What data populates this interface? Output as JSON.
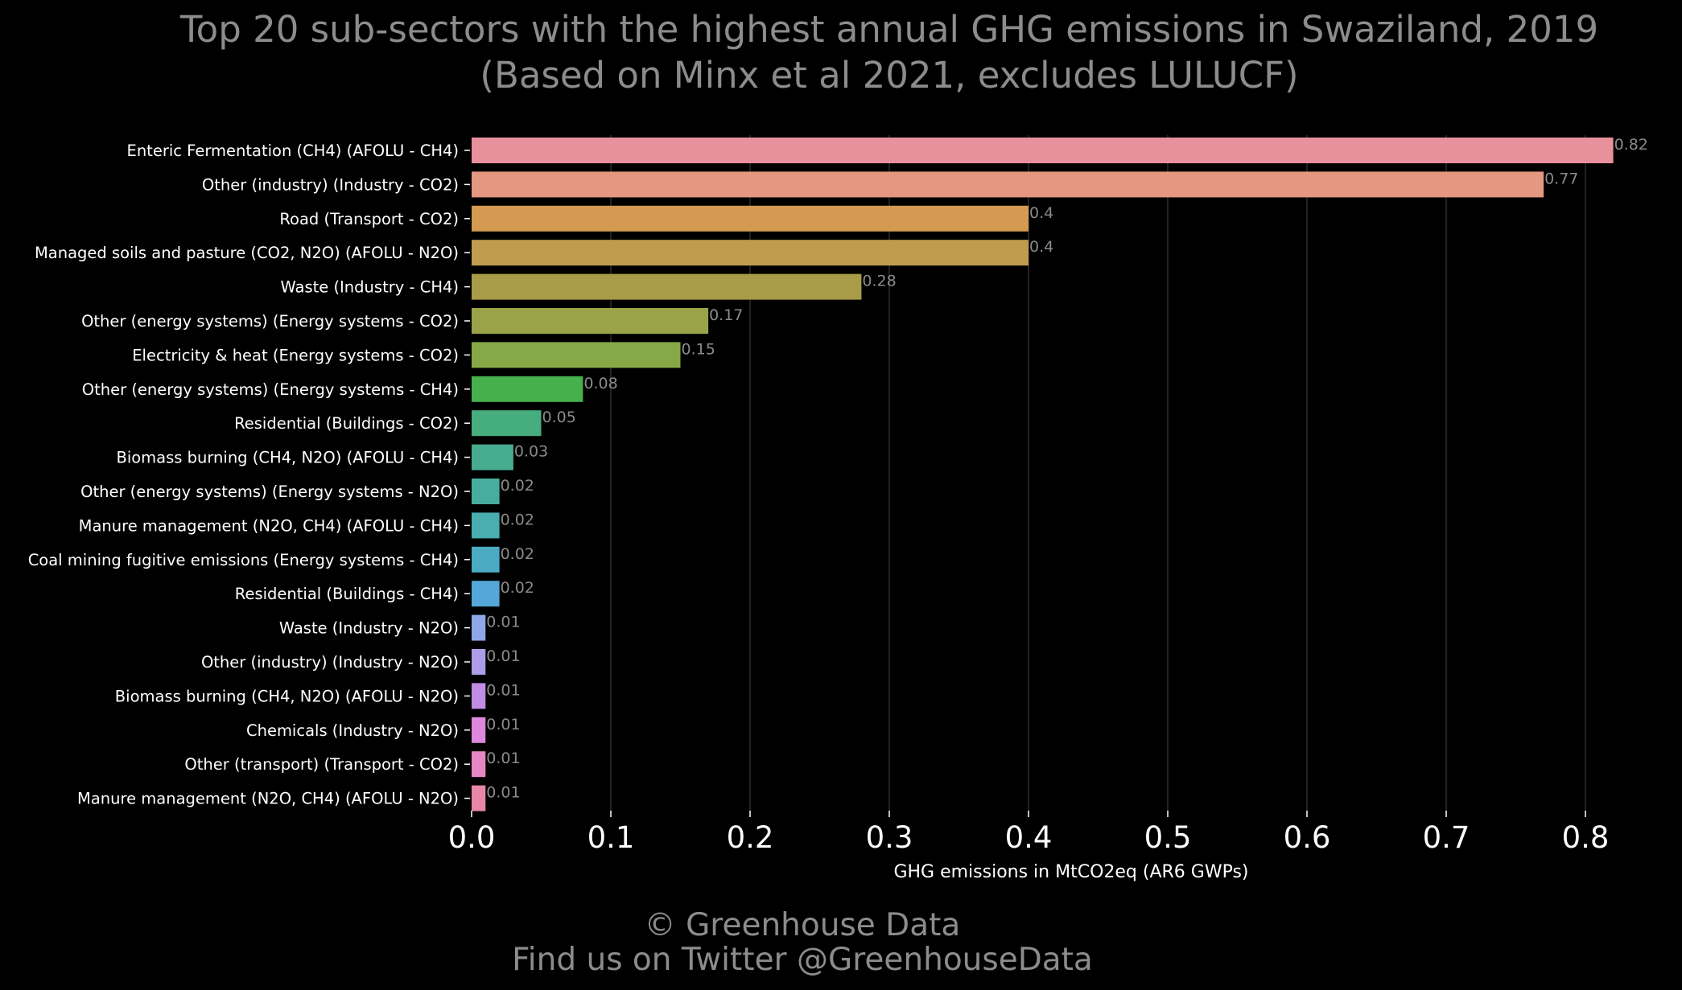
{
  "chart_data": {
    "type": "bar",
    "orientation": "horizontal",
    "title": "Top 20 sub-sectors with the highest annual GHG emissions in Swaziland, 2019",
    "subtitle": "(Based on Minx et al 2021, excludes LULUCF)",
    "xlabel": "GHG emissions in MtCO2eq (AR6 GWPs)",
    "ylabel": "",
    "xlim": [
      0,
      0.84
    ],
    "x_ticks": [
      0.0,
      0.1,
      0.2,
      0.3,
      0.4,
      0.5,
      0.6,
      0.7,
      0.8
    ],
    "x_tick_labels": [
      "0.0",
      "0.1",
      "0.2",
      "0.3",
      "0.4",
      "0.5",
      "0.6",
      "0.7",
      "0.8"
    ],
    "grid": "vertical",
    "categories": [
      "Enteric Fermentation (CH4) (AFOLU - CH4)",
      "Other (industry) (Industry - CO2)",
      "Road (Transport - CO2)",
      "Managed soils and pasture (CO2, N2O) (AFOLU - N2O)",
      "Waste (Industry - CH4)",
      "Other (energy systems) (Energy systems - CO2)",
      "Electricity & heat (Energy systems - CO2)",
      "Other (energy systems) (Energy systems - CH4)",
      "Residential (Buildings - CO2)",
      "Biomass burning (CH4, N2O) (AFOLU - CH4)",
      "Other (energy systems) (Energy systems - N2O)",
      "Manure management (N2O, CH4) (AFOLU - CH4)",
      "Coal mining fugitive emissions (Energy systems - CH4)",
      "Residential (Buildings - CH4)",
      "Waste (Industry - N2O)",
      "Other (industry) (Industry - N2O)",
      "Biomass burning (CH4, N2O) (AFOLU - N2O)",
      "Chemicals (Industry - N2O)",
      "Other (transport) (Transport - CO2)",
      "Manure management (N2O, CH4) (AFOLU - N2O)"
    ],
    "values": [
      0.82,
      0.77,
      0.4,
      0.4,
      0.28,
      0.17,
      0.15,
      0.08,
      0.05,
      0.03,
      0.02,
      0.02,
      0.02,
      0.02,
      0.01,
      0.01,
      0.01,
      0.01,
      0.01,
      0.01
    ],
    "value_labels": [
      "0.82",
      "0.77",
      "0.4",
      "0.4",
      "0.28",
      "0.17",
      "0.15",
      "0.08",
      "0.05",
      "0.03",
      "0.02",
      "0.02",
      "0.02",
      "0.02",
      "0.01",
      "0.01",
      "0.01",
      "0.01",
      "0.01",
      "0.01"
    ],
    "colors": [
      "#e8909c",
      "#e59880",
      "#d49a52",
      "#bf9c4e",
      "#a89c48",
      "#9ba348",
      "#86a846",
      "#45b04c",
      "#46ad7e",
      "#47ab8f",
      "#46ad9f",
      "#48aeb0",
      "#4aabc2",
      "#54a7d8",
      "#8fa7e6",
      "#ad9ce8",
      "#c08ce4",
      "#df86de",
      "#e886c4",
      "#e886aa"
    ]
  },
  "footer": {
    "line1": "© Greenhouse Data",
    "line2": "Find us on Twitter @GreenhouseData"
  },
  "theme": {
    "background": "#000000",
    "title_color": "#8c8c8c",
    "text_color": "#ffffff",
    "value_label_color": "#8a8a8a",
    "grid_color": "#2e2e2e"
  }
}
